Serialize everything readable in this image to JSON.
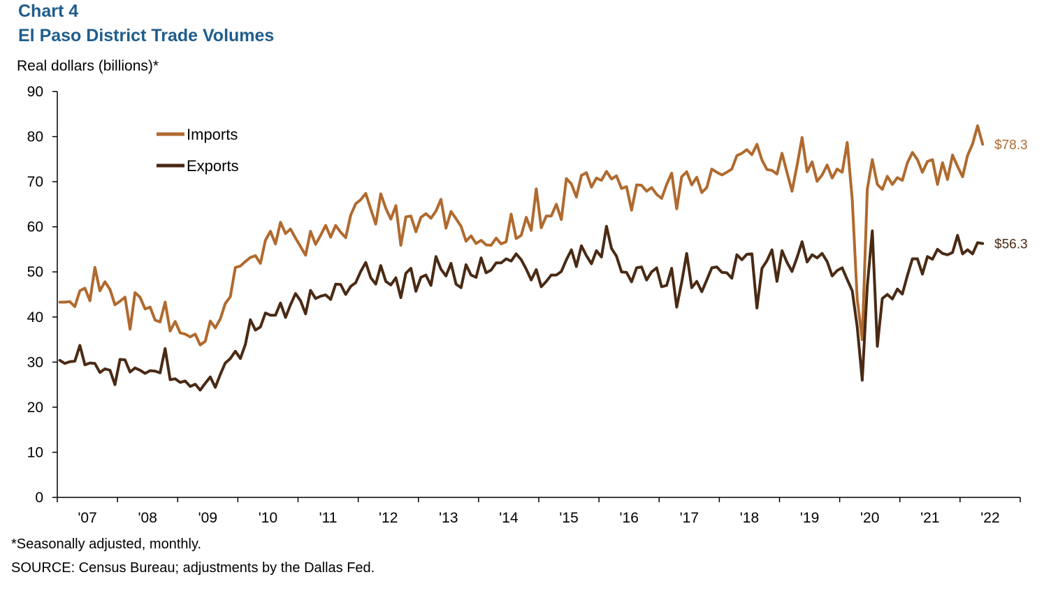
{
  "header": {
    "chart_number": "Chart 4",
    "title": "El Paso District Trade Volumes",
    "y_unit": "Real dollars (billions)*"
  },
  "footer": {
    "note": "*Seasonally adjusted, monthly.",
    "source": "SOURCE: Census Bureau; adjustments by the Dallas Fed."
  },
  "colors": {
    "imports": "#b06a2e",
    "exports": "#4a2a14",
    "axis": "#000000"
  },
  "chart_data": {
    "type": "line",
    "title": "El Paso District Trade Volumes",
    "ylabel": "Real dollars (billions)*",
    "ylim": [
      0,
      90
    ],
    "yticks": [
      0,
      10,
      20,
      30,
      40,
      50,
      60,
      70,
      80,
      90
    ],
    "x_start": "2007-01",
    "x_end": "2022-06",
    "x_tick_labels": [
      "'07",
      "'08",
      "'09",
      "'10",
      "'11",
      "'12",
      "'13",
      "'14",
      "'15",
      "'16",
      "'17",
      "'18",
      "'19",
      "'20",
      "'21",
      "'22"
    ],
    "grid": false,
    "legend": "top-left",
    "series": [
      {
        "name": "Imports",
        "end_label": "$78.3",
        "values": [
          43.3,
          43.3,
          43.4,
          42.3,
          45.8,
          46.4,
          43.6,
          51.0,
          45.8,
          47.8,
          46.1,
          42.7,
          43.5,
          44.4,
          37.3,
          45.4,
          44.4,
          41.8,
          42.2,
          39.3,
          38.9,
          43.3,
          36.9,
          39.0,
          36.5,
          36.2,
          35.6,
          36.2,
          33.8,
          34.6,
          39.1,
          37.6,
          39.6,
          43.0,
          44.5,
          51.0,
          51.3,
          52.3,
          53.2,
          53.6,
          51.9,
          57.0,
          59.0,
          56.2,
          61.0,
          58.5,
          59.5,
          57.5,
          55.6,
          53.7,
          59.0,
          56.1,
          58.1,
          60.3,
          57.7,
          60.3,
          58.8,
          57.6,
          62.6,
          65.1,
          66.0,
          67.4,
          63.9,
          60.6,
          67.3,
          64.1,
          61.7,
          64.7,
          55.9,
          62.2,
          62.4,
          58.9,
          62.1,
          62.9,
          61.9,
          63.5,
          66.1,
          59.7,
          63.4,
          61.8,
          60.1,
          56.8,
          58.0,
          56.3,
          57.0,
          56.0,
          55.9,
          57.5,
          56.2,
          56.7,
          62.8,
          57.4,
          58.1,
          62.1,
          59.2,
          68.4,
          59.8,
          62.4,
          62.4,
          65.0,
          61.6,
          70.7,
          69.5,
          66.6,
          71.4,
          72.0,
          68.8,
          70.8,
          70.3,
          72.3,
          70.6,
          71.3,
          68.5,
          68.9,
          63.7,
          69.3,
          69.2,
          67.9,
          68.7,
          67.2,
          66.3,
          69.4,
          71.9,
          64.0,
          71.1,
          72.2,
          69.3,
          71.0,
          67.6,
          68.7,
          72.8,
          72.1,
          71.5,
          72.1,
          72.8,
          75.8,
          76.3,
          77.1,
          76.0,
          78.3,
          74.8,
          72.7,
          72.5,
          71.7,
          76.3,
          72.0,
          67.9,
          73.6,
          79.8,
          72.2,
          74.4,
          70.1,
          71.5,
          73.7,
          70.8,
          72.8,
          72.1,
          78.7,
          66.0,
          44.0,
          35.0,
          68.3,
          74.9,
          69.4,
          68.3,
          71.2,
          69.4,
          70.9,
          70.3,
          74.2,
          76.5,
          74.9,
          72.1,
          74.5,
          74.9,
          69.4,
          74.2,
          70.5,
          75.9,
          73.4,
          71.1,
          75.8,
          78.4,
          82.4,
          78.3
        ]
      },
      {
        "name": "Exports",
        "end_label": "$56.3",
        "values": [
          30.4,
          29.7,
          30.1,
          30.2,
          33.7,
          29.4,
          29.8,
          29.7,
          27.7,
          28.5,
          28.2,
          25.0,
          30.6,
          30.5,
          27.8,
          28.7,
          28.2,
          27.5,
          28.1,
          28.0,
          27.6,
          33.0,
          26.1,
          26.3,
          25.5,
          25.8,
          24.6,
          25.1,
          23.8,
          25.3,
          26.7,
          24.4,
          27.3,
          29.8,
          30.8,
          32.4,
          30.8,
          33.9,
          39.4,
          37.1,
          37.8,
          40.9,
          40.4,
          40.4,
          43.1,
          39.9,
          42.7,
          45.2,
          43.6,
          40.7,
          45.9,
          44.1,
          44.6,
          44.9,
          43.9,
          47.3,
          47.2,
          45.0,
          46.8,
          47.6,
          50.1,
          52.1,
          48.7,
          47.3,
          51.4,
          47.9,
          47.1,
          48.7,
          44.3,
          49.7,
          50.8,
          45.7,
          48.8,
          49.3,
          47.0,
          53.4,
          50.6,
          49.1,
          51.9,
          47.3,
          46.5,
          51.6,
          49.3,
          48.8,
          53.1,
          49.8,
          50.4,
          52.0,
          52.0,
          52.9,
          52.4,
          54.0,
          52.7,
          50.6,
          48.2,
          50.5,
          46.7,
          47.9,
          49.3,
          49.3,
          50.1,
          52.7,
          54.9,
          51.2,
          55.8,
          53.6,
          51.8,
          54.7,
          53.3,
          60.1,
          55.2,
          53.5,
          50.0,
          49.9,
          47.8,
          50.9,
          51.1,
          48.2,
          50.0,
          50.9,
          46.7,
          47.0,
          50.8,
          42.2,
          47.7,
          54.1,
          46.5,
          47.9,
          45.6,
          48.2,
          50.9,
          51.1,
          49.9,
          49.8,
          48.6,
          53.8,
          52.7,
          53.9,
          54.0,
          42.0,
          50.8,
          52.5,
          54.9,
          47.9,
          54.7,
          52.1,
          50.1,
          53.2,
          56.7,
          52.2,
          53.8,
          53.1,
          54.1,
          52.3,
          49.1,
          50.3,
          50.9,
          48.3,
          45.8,
          37.8,
          26.0,
          46.8,
          59.1,
          33.5,
          44.1,
          45.0,
          44.0,
          46.2,
          45.1,
          49.2,
          52.9,
          52.9,
          49.5,
          53.4,
          52.8,
          55.0,
          54.1,
          53.8,
          54.3,
          58.1,
          54.0,
          54.9,
          54.0,
          56.5,
          56.3
        ]
      }
    ]
  }
}
